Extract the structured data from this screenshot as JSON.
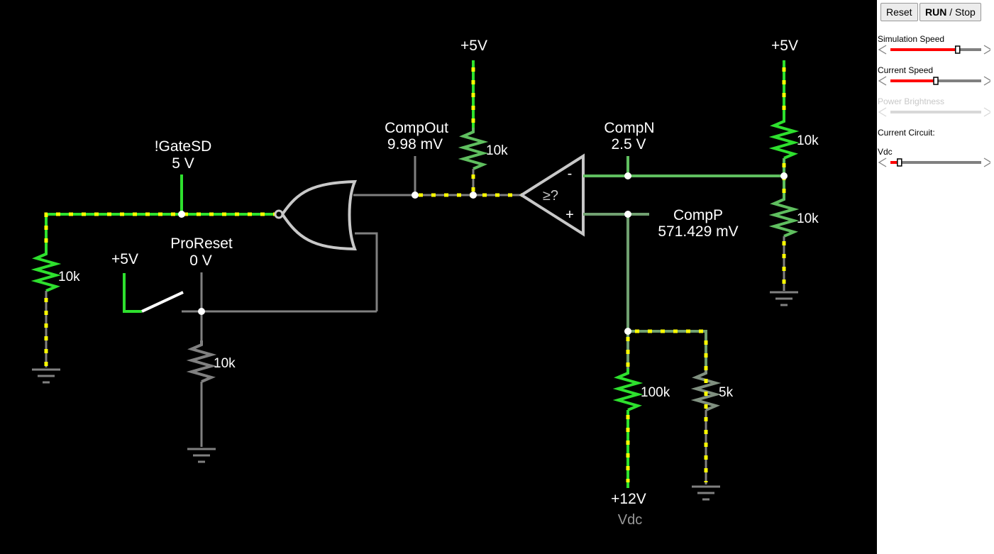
{
  "circuit": {
    "labels": {
      "v5_mid": "+5V",
      "v5_right": "+5V",
      "v5_switch": "+5V",
      "gatesd_name": "!GateSD",
      "gatesd_value": "5 V",
      "compout_name": "CompOut",
      "compout_value": "9.98 mV",
      "compn_name": "CompN",
      "compn_value": "2.5 V",
      "compp_name": "CompP",
      "compp_value": "571.429 mV",
      "proreset_name": "ProReset",
      "proreset_value": "0 V",
      "v12": "+12V",
      "vdc": "Vdc",
      "comparator_symbol": "≥?",
      "comp_minus": "-",
      "comp_plus": "+"
    },
    "resistors": {
      "r_left": "10k",
      "r_compout": "10k",
      "r_top_right": "10k",
      "r_bottom_right": "10k",
      "r_switch": "10k",
      "r_100k": "100k",
      "r_5k": "5k"
    },
    "colors": {
      "background": "#000000",
      "wire_inactive": "#808080",
      "wire_active": "#2ee02e",
      "current_dots": "#ffff00"
    }
  },
  "panel": {
    "reset_label": "Reset",
    "run_label": "RUN",
    "stop_label": " / Stop",
    "sim_speed_label": "Simulation Speed",
    "sim_speed_value": 0.74,
    "current_speed_label": "Current Speed",
    "current_speed_value": 0.5,
    "power_brightness_label": "Power Brightness",
    "current_circuit_label": "Current Circuit:",
    "vdc_label": "Vdc",
    "vdc_value": 0.1,
    "slider_accent": "#ff0000"
  }
}
